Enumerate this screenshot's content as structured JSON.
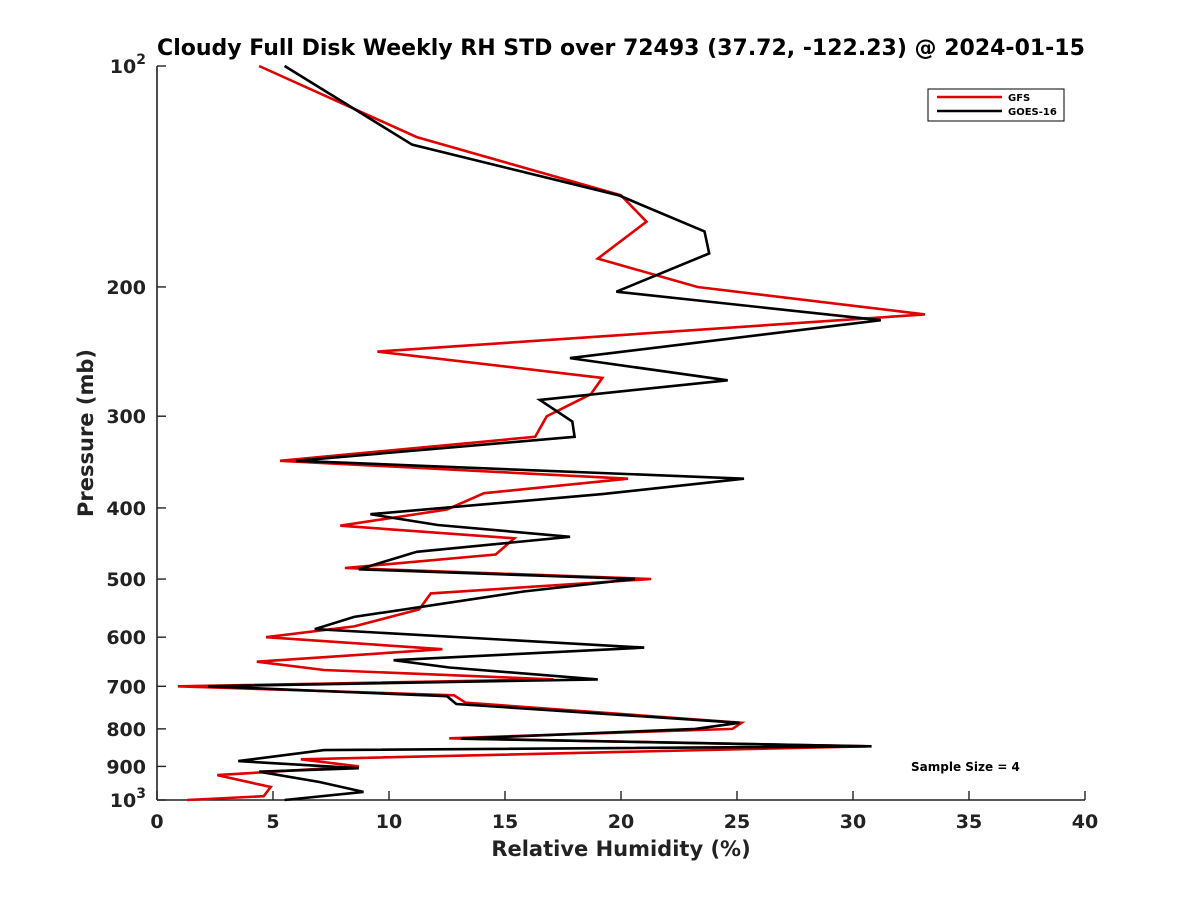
{
  "chart_data": {
    "type": "line",
    "title": "Cloudy Full Disk Weekly RH STD over 72493 (37.72, -122.23) @ 2024-01-15",
    "xlabel": "Relative Humidity (%)",
    "ylabel": "Pressure (mb)",
    "xlim": [
      0,
      40
    ],
    "ylim": [
      100,
      1000
    ],
    "y_scale": "log",
    "y_reversed": true,
    "x_ticks": [
      0,
      5,
      10,
      15,
      20,
      25,
      30,
      35,
      40
    ],
    "y_ticks": [
      100,
      200,
      300,
      400,
      500,
      600,
      700,
      800,
      900,
      1000
    ],
    "y_tick_labels": [
      {
        "base": "10",
        "exp": "2"
      },
      {
        "base": "200"
      },
      {
        "base": "300"
      },
      {
        "base": "400"
      },
      {
        "base": "500"
      },
      {
        "base": "600"
      },
      {
        "base": "700"
      },
      {
        "base": "800"
      },
      {
        "base": "900"
      },
      {
        "base": "10",
        "exp": "3"
      }
    ],
    "grid": false,
    "legend_position": "top-right",
    "annotation": "Sample Size = 4",
    "series": [
      {
        "name": "GFS",
        "color": "#e00000",
        "points": [
          [
            4.4,
            100
          ],
          [
            11.2,
            125
          ],
          [
            20.0,
            150
          ],
          [
            21.1,
            163
          ],
          [
            19.0,
            183
          ],
          [
            23.3,
            200
          ],
          [
            33.1,
            218
          ],
          [
            9.5,
            245
          ],
          [
            19.2,
            266
          ],
          [
            18.7,
            280
          ],
          [
            16.8,
            300
          ],
          [
            16.3,
            320
          ],
          [
            5.3,
            345
          ],
          [
            20.3,
            365
          ],
          [
            14.1,
            382
          ],
          [
            12.5,
            402
          ],
          [
            7.9,
            423
          ],
          [
            15.4,
            440
          ],
          [
            14.6,
            463
          ],
          [
            8.1,
            483
          ],
          [
            21.3,
            500
          ],
          [
            11.8,
            523
          ],
          [
            11.3,
            550
          ],
          [
            8.5,
            580
          ],
          [
            4.7,
            600
          ],
          [
            12.3,
            623
          ],
          [
            4.3,
            648
          ],
          [
            7.2,
            665
          ],
          [
            17.1,
            685
          ],
          [
            0.9,
            700
          ],
          [
            12.8,
            720
          ],
          [
            13.3,
            737
          ],
          [
            25.2,
            785
          ],
          [
            24.8,
            800
          ],
          [
            12.6,
            824
          ],
          [
            30.6,
            845
          ],
          [
            6.2,
            880
          ],
          [
            8.7,
            900
          ],
          [
            2.6,
            925
          ],
          [
            4.9,
            960
          ],
          [
            4.6,
            988
          ],
          [
            1.3,
            1000
          ]
        ]
      },
      {
        "name": "GOES-16",
        "color": "#000000",
        "points": [
          [
            5.5,
            100
          ],
          [
            11.0,
            128
          ],
          [
            19.9,
            150
          ],
          [
            23.6,
            168
          ],
          [
            23.8,
            180
          ],
          [
            19.8,
            203
          ],
          [
            31.2,
            222
          ],
          [
            17.8,
            250
          ],
          [
            24.6,
            268
          ],
          [
            16.5,
            285
          ],
          [
            17.9,
            305
          ],
          [
            18.0,
            320
          ],
          [
            6.0,
            345
          ],
          [
            25.3,
            365
          ],
          [
            19.2,
            383
          ],
          [
            9.2,
            408
          ],
          [
            12.1,
            422
          ],
          [
            17.8,
            438
          ],
          [
            11.2,
            459
          ],
          [
            8.7,
            485
          ],
          [
            20.6,
            500
          ],
          [
            15.8,
            520
          ],
          [
            8.5,
            563
          ],
          [
            6.8,
            585
          ],
          [
            21.0,
            620
          ],
          [
            10.2,
            645
          ],
          [
            12.6,
            660
          ],
          [
            19.0,
            685
          ],
          [
            2.2,
            700
          ],
          [
            12.5,
            722
          ],
          [
            12.9,
            740
          ],
          [
            25.1,
            785
          ],
          [
            23.2,
            800
          ],
          [
            13.1,
            825
          ],
          [
            30.8,
            845
          ],
          [
            7.2,
            855
          ],
          [
            3.5,
            885
          ],
          [
            8.7,
            905
          ],
          [
            4.4,
            915
          ],
          [
            7.0,
            945
          ],
          [
            8.9,
            975
          ],
          [
            5.5,
            1000
          ]
        ]
      }
    ]
  }
}
